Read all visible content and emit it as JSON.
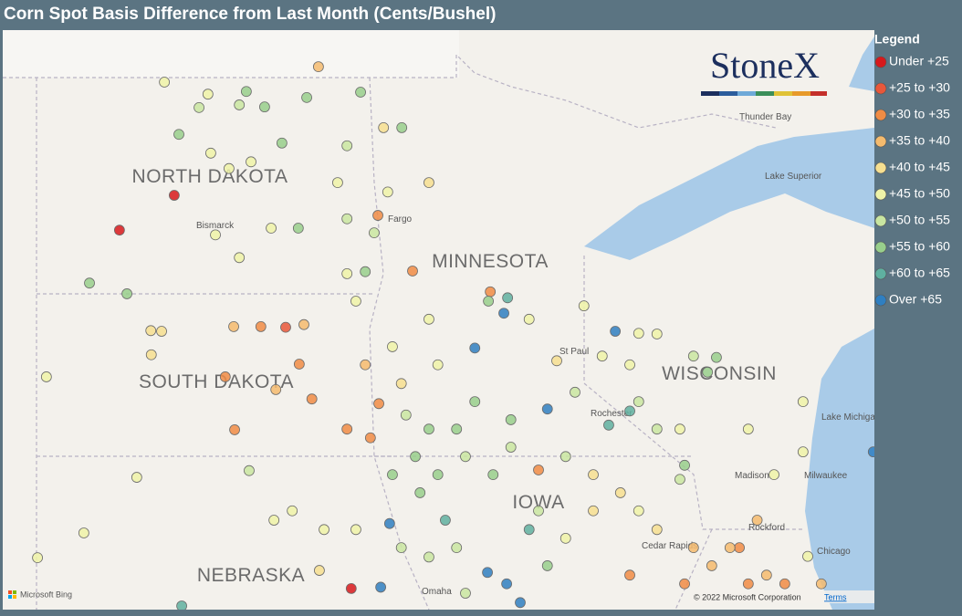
{
  "title": "Corn Spot Basis Difference from Last Month (Cents/Bushel)",
  "legend": {
    "title": "Legend",
    "items": [
      {
        "label": "Under +25",
        "color": "#d7191c"
      },
      {
        "label": "+25 to +30",
        "color": "#e8573a"
      },
      {
        "label": "+30 to +35",
        "color": "#f08c45"
      },
      {
        "label": "+35 to +40",
        "color": "#f5bb6e"
      },
      {
        "label": "+40 to +45",
        "color": "#f6df90"
      },
      {
        "label": "+45 to +50",
        "color": "#eef3a8"
      },
      {
        "label": "+50 to +55",
        "color": "#c9e6a1"
      },
      {
        "label": "+55 to +60",
        "color": "#98cf8c"
      },
      {
        "label": "+60 to +65",
        "color": "#5fb0a0"
      },
      {
        "label": "Over +65",
        "color": "#2f7fc1"
      }
    ]
  },
  "map": {
    "logo": "StoneX",
    "provider": "Microsoft Bing",
    "attribution": "© 2022 Microsoft Corporation",
    "terms": "Terms",
    "labels": [
      "NORTH DAKOTA",
      "SOUTH DAKOTA",
      "MINNESOTA",
      "WISCONSIN",
      "NEBRASKA",
      "IOWA",
      "Bismarck",
      "Fargo",
      "St Paul",
      "Rochester",
      "Madison",
      "Milwaukee",
      "Rockford",
      "Cedar Rapids",
      "Chicago",
      "Omaha",
      "Thunder Bay",
      "Lake Superior",
      "Lake Michigan"
    ],
    "points": [
      [
        -101.25,
        47.3,
        0
      ],
      [
        -102.42,
        46.78,
        0
      ],
      [
        -98.17,
        49.22,
        3
      ],
      [
        -98.87,
        45.33,
        1
      ],
      [
        -100.16,
        44.59,
        2
      ],
      [
        -94.5,
        45.86,
        2
      ],
      [
        -91.83,
        45.27,
        9
      ],
      [
        -94.83,
        45.02,
        9
      ],
      [
        -93.28,
        44.11,
        9
      ],
      [
        -94.13,
        45.77,
        8
      ],
      [
        -94.21,
        45.54,
        9
      ],
      [
        -91.97,
        43.87,
        8
      ],
      [
        -96.65,
        42.4,
        9
      ],
      [
        -95.46,
        42.45,
        8
      ],
      [
        -93.67,
        42.31,
        8
      ],
      [
        -96.84,
        41.45,
        9
      ],
      [
        -94.56,
        41.67,
        9
      ],
      [
        -94.15,
        41.5,
        9
      ],
      [
        -101.09,
        41.17,
        8
      ],
      [
        -103.06,
        45.99,
        7
      ],
      [
        -102.26,
        45.83,
        7
      ],
      [
        -99.71,
        48.85,
        7
      ],
      [
        -99.32,
        48.62,
        7
      ],
      [
        -98.42,
        48.76,
        7
      ],
      [
        -97.27,
        48.84,
        7
      ],
      [
        -98.95,
        48.08,
        7
      ],
      [
        -98.6,
        46.81,
        7
      ],
      [
        -97.17,
        46.16,
        7
      ],
      [
        -101.46,
        48.99,
        5
      ],
      [
        -100.53,
        48.81,
        5
      ],
      [
        -100.72,
        48.61,
        6
      ],
      [
        -101.15,
        48.21,
        7
      ],
      [
        -99.86,
        48.65,
        6
      ],
      [
        -100.47,
        47.93,
        5
      ],
      [
        -99.61,
        47.8,
        5
      ],
      [
        -100.08,
        47.7,
        5
      ],
      [
        -100.37,
        46.71,
        5
      ],
      [
        -99.86,
        46.37,
        5
      ],
      [
        -99.18,
        46.81,
        5
      ],
      [
        -97.56,
        46.95,
        6
      ],
      [
        -96.9,
        47.0,
        2
      ],
      [
        -96.16,
        46.17,
        2
      ],
      [
        -96.98,
        46.74,
        6
      ],
      [
        -101.75,
        45.28,
        4
      ],
      [
        -101.52,
        45.27,
        4
      ],
      [
        -101.74,
        44.92,
        4
      ],
      [
        -103.98,
        44.59,
        5
      ],
      [
        -99.98,
        45.34,
        3
      ],
      [
        -99.4,
        45.34,
        2
      ],
      [
        -98.48,
        45.37,
        3
      ],
      [
        -98.58,
        44.78,
        2
      ],
      [
        -98.31,
        44.26,
        2
      ],
      [
        -99.96,
        43.8,
        2
      ],
      [
        -99.08,
        44.4,
        3
      ],
      [
        -99.65,
        43.19,
        6
      ],
      [
        -102.05,
        43.09,
        5
      ],
      [
        -104.17,
        41.89,
        5
      ],
      [
        -103.18,
        42.26,
        5
      ],
      [
        -97.17,
        44.77,
        3
      ],
      [
        -97.56,
        43.81,
        2
      ],
      [
        -97.06,
        43.68,
        2
      ],
      [
        -96.88,
        44.19,
        2
      ],
      [
        -96.3,
        44.02,
        6
      ],
      [
        -95.81,
        43.81,
        7
      ],
      [
        -96.1,
        43.4,
        7
      ],
      [
        -95.62,
        43.13,
        7
      ],
      [
        -95.03,
        43.4,
        6
      ],
      [
        -94.44,
        43.13,
        7
      ],
      [
        -94.06,
        43.54,
        6
      ],
      [
        -93.47,
        43.2,
        2
      ],
      [
        -92.89,
        43.4,
        6
      ],
      [
        -92.3,
        43.13,
        4
      ],
      [
        -91.72,
        42.86,
        4
      ],
      [
        -91.33,
        42.59,
        5
      ],
      [
        -90.94,
        42.31,
        4
      ],
      [
        -90.16,
        42.04,
        3
      ],
      [
        -89.77,
        41.77,
        3
      ],
      [
        -89.18,
        42.04,
        2
      ],
      [
        -88.99,
        41.5,
        2
      ],
      [
        -88.6,
        41.63,
        3
      ],
      [
        -88.21,
        41.5,
        2
      ],
      [
        -90.35,
        41.5,
        2
      ],
      [
        -91.52,
        41.63,
        2
      ],
      [
        -90.16,
        44.9,
        6
      ],
      [
        -89.67,
        44.88,
        7
      ],
      [
        -89.86,
        44.66,
        7
      ],
      [
        -88.99,
        43.81,
        5
      ],
      [
        -88.44,
        43.13,
        5
      ],
      [
        -87.82,
        44.22,
        5
      ],
      [
        -87.82,
        43.47,
        5
      ],
      [
        -86.32,
        43.47,
        9
      ],
      [
        -90.45,
        43.81,
        5
      ],
      [
        -90.45,
        43.06,
        6
      ],
      [
        -91.33,
        44.22,
        6
      ],
      [
        -92.69,
        44.36,
        6
      ],
      [
        -91.52,
        44.08,
        8
      ],
      [
        -92.5,
        45.65,
        5
      ],
      [
        -91.33,
        45.24,
        5
      ],
      [
        -90.94,
        45.23,
        5
      ],
      [
        -93.47,
        42.59,
        6
      ],
      [
        -92.89,
        42.18,
        5
      ],
      [
        -92.3,
        42.59,
        4
      ],
      [
        -95.22,
        42.04,
        6
      ],
      [
        -95.81,
        41.9,
        6
      ],
      [
        -96.4,
        42.04,
        6
      ],
      [
        -97.37,
        42.31,
        5
      ],
      [
        -98.05,
        42.31,
        5
      ],
      [
        -98.73,
        42.59,
        5
      ],
      [
        -99.12,
        42.45,
        5
      ],
      [
        -98.15,
        41.7,
        4
      ],
      [
        -97.47,
        41.43,
        0
      ],
      [
        -95.03,
        41.36,
        6
      ],
      [
        -93.86,
        41.22,
        9
      ],
      [
        -93.28,
        41.77,
        7
      ],
      [
        -96.0,
        42.86,
        7
      ],
      [
        -96.59,
        43.13,
        7
      ],
      [
        -95.22,
        43.81,
        7
      ],
      [
        -94.83,
        44.22,
        7
      ],
      [
        -94.06,
        43.95,
        7
      ],
      [
        -95.81,
        45.45,
        5
      ],
      [
        -96.59,
        45.04,
        5
      ],
      [
        -95.62,
        44.77,
        5
      ],
      [
        -96.4,
        44.49,
        4
      ],
      [
        -97.37,
        45.72,
        5
      ],
      [
        -97.56,
        46.13,
        5
      ],
      [
        -97.76,
        47.49,
        5
      ],
      [
        -97.56,
        48.04,
        6
      ],
      [
        -96.78,
        48.31,
        4
      ],
      [
        -96.39,
        48.31,
        7
      ],
      [
        -95.81,
        47.49,
        4
      ],
      [
        -96.69,
        47.35,
        5
      ],
      [
        -94.54,
        45.72,
        7
      ],
      [
        -93.67,
        45.45,
        5
      ],
      [
        -93.08,
        44.83,
        4
      ],
      [
        -92.11,
        44.9,
        5
      ],
      [
        -91.52,
        44.77,
        5
      ],
      [
        -90.94,
        43.81,
        6
      ],
      [
        -90.35,
        43.27,
        7
      ],
      [
        -89.38,
        42.04,
        3
      ],
      [
        -88.8,
        42.45,
        3
      ],
      [
        -87.72,
        41.91,
        5
      ],
      [
        -87.43,
        41.5,
        3
      ]
    ]
  }
}
